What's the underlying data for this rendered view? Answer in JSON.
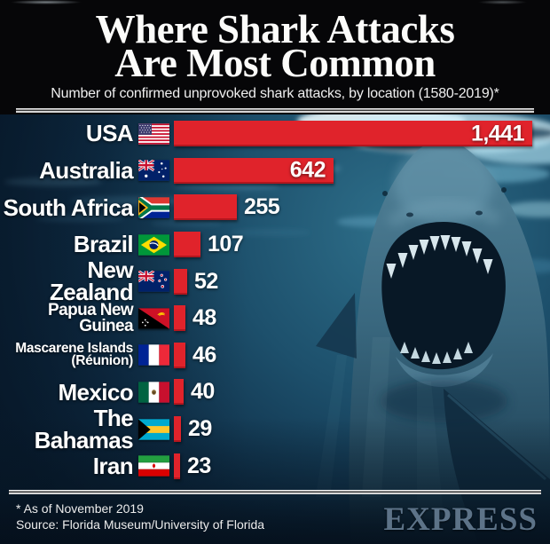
{
  "header": {
    "title_line1": "Where Shark Attacks",
    "title_line2": "Are Most Common",
    "subtitle": "Number of confirmed unprovoked shark attacks, by location (1580-2019)*"
  },
  "chart_data": {
    "type": "bar",
    "orientation": "horizontal",
    "title": "Where Shark Attacks Are Most Common",
    "subtitle": "Number of confirmed unprovoked shark attacks, by location (1580-2019)*",
    "categories": [
      "USA",
      "Australia",
      "South Africa",
      "Brazil",
      "New Zealand",
      "Papua New Guinea",
      "Mascarene Islands\n(Réunion)",
      "Mexico",
      "The Bahamas",
      "Iran"
    ],
    "values": [
      1441,
      642,
      255,
      107,
      52,
      48,
      46,
      40,
      29,
      23
    ],
    "value_labels": [
      "1,441",
      "642",
      "255",
      "107",
      "52",
      "48",
      "46",
      "40",
      "29",
      "23"
    ],
    "flags": [
      "flag-usa",
      "flag-australia",
      "flag-south-africa",
      "flag-brazil",
      "flag-new-zealand",
      "flag-papua-new-guinea",
      "flag-france",
      "flag-mexico",
      "flag-bahamas",
      "flag-iran"
    ],
    "xlim": [
      0,
      1441
    ],
    "bar_color": "#e0232b",
    "grid": false,
    "legend": false
  },
  "footer": {
    "footnote_line1": "* As of November 2019",
    "footnote_line2": "Source: Florida Museum/University of Florida",
    "brand": "EXPRESS"
  },
  "colors": {
    "bar_red": "#e0232b",
    "header_bg": "#060608",
    "water_deep": "#0a1c2e",
    "express_logo": "#5d7388",
    "text": "#ffffff"
  }
}
